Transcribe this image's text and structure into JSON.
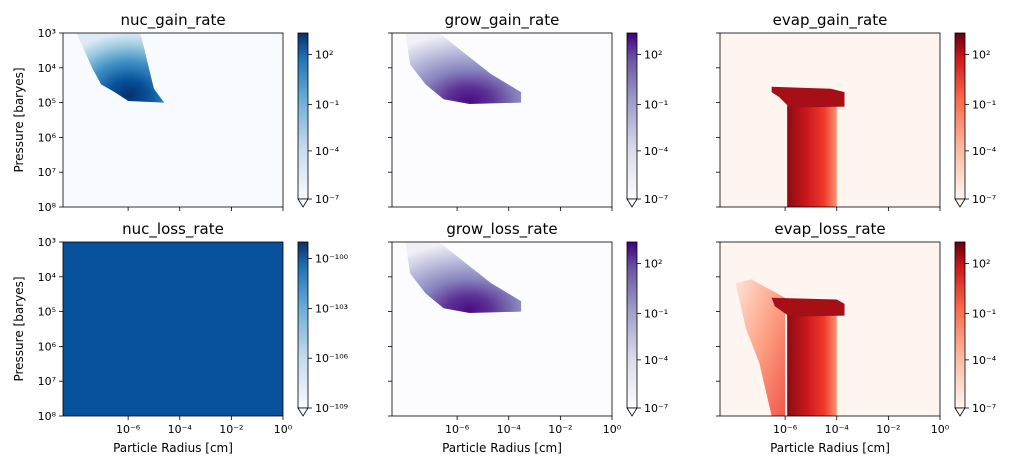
{
  "chart_data": {
    "type": "heatmap",
    "xlabel": "Particle Radius [cm]",
    "ylabel": "Pressure [baryes]",
    "x_scale": "log",
    "y_scale": "log",
    "x_ticks": [
      {
        "value": 1e-06,
        "label": "10⁻⁶"
      },
      {
        "value": 0.0001,
        "label": "10⁻⁴"
      },
      {
        "value": 0.01,
        "label": "10⁻²"
      },
      {
        "value": 1,
        "label": "10⁰"
      }
    ],
    "y_ticks": [
      {
        "value": 1000.0,
        "label": "10³"
      },
      {
        "value": 10000.0,
        "label": "10⁴"
      },
      {
        "value": 100000.0,
        "label": "10⁵"
      },
      {
        "value": 1000000.0,
        "label": "10⁶"
      },
      {
        "value": 10000000.0,
        "label": "10⁷"
      },
      {
        "value": 100000000.0,
        "label": "10⁸"
      }
    ],
    "y_inverted": true,
    "xlim": [
      3e-09,
      1
    ],
    "ylim": [
      100000000.0,
      1000.0
    ],
    "panels": [
      {
        "title": "nuc_gain_rate",
        "cmap": "Blues",
        "colors": {
          "low": "#f7fbff",
          "high": "#08306b",
          "mid": "#6baed6"
        },
        "colorbar": {
          "ticks": [
            {
              "frac": 0.13,
              "label": "10²"
            },
            {
              "frac": 0.43,
              "label": "10⁻¹"
            },
            {
              "frac": 0.71,
              "label": "10⁻⁴"
            },
            {
              "frac": 1.0,
              "label": "10⁻⁷"
            }
          ],
          "extend": "min"
        },
        "show_ylabel": true,
        "show_xlabel": false
      },
      {
        "title": "grow_gain_rate",
        "cmap": "Purples",
        "colors": {
          "low": "#fcfbfd",
          "high": "#3f007d",
          "mid": "#9e9ac8"
        },
        "colorbar": {
          "ticks": [
            {
              "frac": 0.13,
              "label": "10²"
            },
            {
              "frac": 0.43,
              "label": "10⁻¹"
            },
            {
              "frac": 0.71,
              "label": "10⁻⁴"
            },
            {
              "frac": 1.0,
              "label": "10⁻⁷"
            }
          ],
          "extend": "min"
        },
        "show_ylabel": false,
        "show_xlabel": false
      },
      {
        "title": "evap_gain_rate",
        "cmap": "Reds",
        "colors": {
          "low": "#fff5f0",
          "high": "#67000d",
          "mid": "#ef3b2c"
        },
        "colorbar": {
          "ticks": [
            {
              "frac": 0.13,
              "label": "10²"
            },
            {
              "frac": 0.43,
              "label": "10⁻¹"
            },
            {
              "frac": 0.71,
              "label": "10⁻⁴"
            },
            {
              "frac": 1.0,
              "label": "10⁻⁷"
            }
          ],
          "extend": "min"
        },
        "show_ylabel": false,
        "show_xlabel": false
      },
      {
        "title": "nuc_loss_rate",
        "cmap": "Blues",
        "colors": {
          "low": "#f7fbff",
          "high": "#08306b",
          "fill": "#08519c"
        },
        "colorbar": {
          "ticks": [
            {
              "frac": 0.1,
              "label": "10⁻¹⁰⁰"
            },
            {
              "frac": 0.4,
              "label": "10⁻¹⁰³"
            },
            {
              "frac": 0.7,
              "label": "10⁻¹⁰⁶"
            },
            {
              "frac": 1.0,
              "label": "10⁻¹⁰⁹"
            }
          ],
          "extend": "min"
        },
        "show_ylabel": true,
        "show_xlabel": true
      },
      {
        "title": "grow_loss_rate",
        "cmap": "Purples",
        "colors": {
          "low": "#fcfbfd",
          "high": "#3f007d",
          "mid": "#9e9ac8"
        },
        "colorbar": {
          "ticks": [
            {
              "frac": 0.13,
              "label": "10²"
            },
            {
              "frac": 0.43,
              "label": "10⁻¹"
            },
            {
              "frac": 0.71,
              "label": "10⁻⁴"
            },
            {
              "frac": 1.0,
              "label": "10⁻⁷"
            }
          ],
          "extend": "min"
        },
        "show_ylabel": false,
        "show_xlabel": true
      },
      {
        "title": "evap_loss_rate",
        "cmap": "Reds",
        "colors": {
          "low": "#fff5f0",
          "high": "#67000d",
          "mid": "#ef3b2c"
        },
        "colorbar": {
          "ticks": [
            {
              "frac": 0.13,
              "label": "10²"
            },
            {
              "frac": 0.43,
              "label": "10⁻¹"
            },
            {
              "frac": 0.71,
              "label": "10⁻⁴"
            },
            {
              "frac": 1.0,
              "label": "10⁻⁷"
            }
          ],
          "extend": "min"
        },
        "show_ylabel": false,
        "show_xlabel": true
      }
    ]
  }
}
